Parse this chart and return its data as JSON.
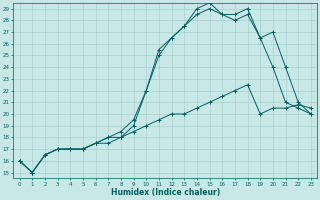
{
  "xlabel": "Humidex (Indice chaleur)",
  "background_color": "#c8e8e8",
  "grid_color": "#a8d0d0",
  "line_color": "#006060",
  "xlim": [
    -0.5,
    23.5
  ],
  "ylim": [
    14.5,
    29.5
  ],
  "yticks": [
    15,
    16,
    17,
    18,
    19,
    20,
    21,
    22,
    23,
    24,
    25,
    26,
    27,
    28,
    29
  ],
  "xticks": [
    0,
    1,
    2,
    3,
    4,
    5,
    6,
    7,
    8,
    9,
    10,
    11,
    12,
    13,
    14,
    15,
    16,
    17,
    18,
    19,
    20,
    21,
    22,
    23
  ],
  "line1_x": [
    0,
    1,
    2,
    3,
    4,
    5,
    6,
    7,
    8,
    9,
    10,
    11,
    12,
    13,
    14,
    15,
    16,
    17,
    18,
    19,
    20,
    21,
    22,
    23
  ],
  "line1_y": [
    16,
    15,
    16.5,
    17,
    17,
    17,
    17.5,
    17.5,
    18,
    18.5,
    19,
    19.5,
    20,
    20,
    20.5,
    21,
    21.5,
    22,
    22.5,
    20,
    20.5,
    20.5,
    20.8,
    20.5
  ],
  "line2_x": [
    0,
    1,
    2,
    3,
    4,
    5,
    6,
    7,
    8,
    9,
    10,
    11,
    12,
    13,
    14,
    15,
    16,
    17,
    18,
    19,
    20,
    21,
    22,
    23
  ],
  "line2_y": [
    16,
    15,
    16.5,
    17,
    17,
    17,
    17.5,
    18,
    18.5,
    19.5,
    22,
    25.5,
    26.5,
    27.5,
    29,
    29.5,
    28.5,
    28.5,
    29,
    26.5,
    24,
    21,
    20.5,
    20
  ],
  "line3_x": [
    0,
    1,
    2,
    3,
    4,
    5,
    6,
    7,
    8,
    9,
    10,
    11,
    12,
    13,
    14,
    15,
    16,
    17,
    18,
    19,
    20,
    21,
    22,
    23
  ],
  "line3_y": [
    16,
    15,
    16.5,
    17,
    17,
    17,
    17.5,
    18,
    18,
    19,
    22,
    25,
    26.5,
    27.5,
    28.5,
    29,
    28.5,
    28,
    28.5,
    26.5,
    27,
    24,
    21,
    20
  ]
}
